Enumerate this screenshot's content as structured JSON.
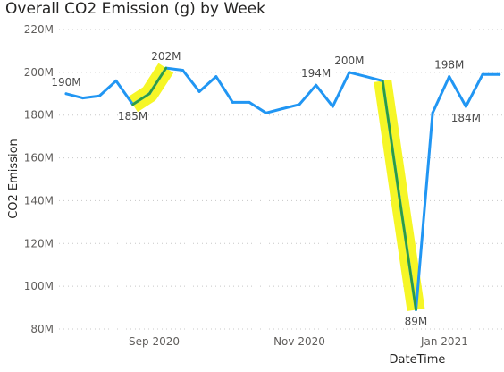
{
  "chart_data": {
    "type": "line",
    "title": "Overall CO2 Emission (g) by Week",
    "xlabel": "DateTime",
    "ylabel": "CO2 Emission",
    "ylim": [
      80,
      220
    ],
    "y_unit_suffix": "M",
    "y_ticks": [
      80,
      100,
      120,
      140,
      160,
      180,
      200,
      220
    ],
    "y_tick_labels": [
      "80M",
      "100M",
      "120M",
      "140M",
      "160M",
      "180M",
      "200M",
      "220M"
    ],
    "x_ticks": [
      "2020-09-01",
      "2020-11-01",
      "2021-01-01"
    ],
    "x_tick_labels": [
      "Sep 2020",
      "Nov 2020",
      "Jan 2021"
    ],
    "grid": true,
    "legend": "none",
    "series": [
      {
        "color": "#2196F3",
        "x": [
          "2020-07-26",
          "2020-08-02",
          "2020-08-09",
          "2020-08-16",
          "2020-08-23",
          "2020-08-30",
          "2020-09-06",
          "2020-09-13",
          "2020-09-20",
          "2020-09-27",
          "2020-10-04",
          "2020-10-11",
          "2020-10-18",
          "2020-10-25",
          "2020-11-01",
          "2020-11-08",
          "2020-11-15",
          "2020-11-22",
          "2020-11-29",
          "2020-12-06",
          "2020-12-13",
          "2020-12-20",
          "2020-12-27",
          "2021-01-03",
          "2021-01-10",
          "2021-01-17",
          "2021-01-24"
        ],
        "values": [
          190,
          188,
          189,
          196,
          185,
          190,
          202,
          201,
          191,
          198,
          186,
          186,
          181,
          183,
          185,
          194,
          184,
          200,
          198,
          196,
          142,
          89,
          181,
          198,
          184,
          199,
          199
        ]
      }
    ],
    "data_labels": [
      {
        "x": "2020-07-26",
        "value": 190,
        "text": "190M",
        "position": "above"
      },
      {
        "x": "2020-08-23",
        "value": 185,
        "text": "185M",
        "position": "below"
      },
      {
        "x": "2020-09-06",
        "value": 202,
        "text": "202M",
        "position": "above"
      },
      {
        "x": "2020-11-08",
        "value": 194,
        "text": "194M",
        "position": "above"
      },
      {
        "x": "2020-11-22",
        "value": 200,
        "text": "200M",
        "position": "above"
      },
      {
        "x": "2020-12-20",
        "value": 89,
        "text": "89M",
        "position": "below"
      },
      {
        "x": "2021-01-03",
        "value": 198,
        "text": "198M",
        "position": "above"
      },
      {
        "x": "2021-01-10",
        "value": 184,
        "text": "184M",
        "position": "below"
      }
    ],
    "annotations": [
      {
        "kind": "highlighter",
        "highlight_color": "#F5F51A",
        "trace_color": "#2E9E3E",
        "x": [
          "2020-08-23",
          "2020-08-30",
          "2020-09-06"
        ],
        "values": [
          185,
          190,
          202
        ]
      },
      {
        "kind": "highlighter",
        "highlight_color": "#F5F51A",
        "trace_color": "#2E9E3E",
        "x": [
          "2020-12-06",
          "2020-12-13",
          "2020-12-20"
        ],
        "values": [
          196,
          142,
          89
        ]
      }
    ]
  }
}
